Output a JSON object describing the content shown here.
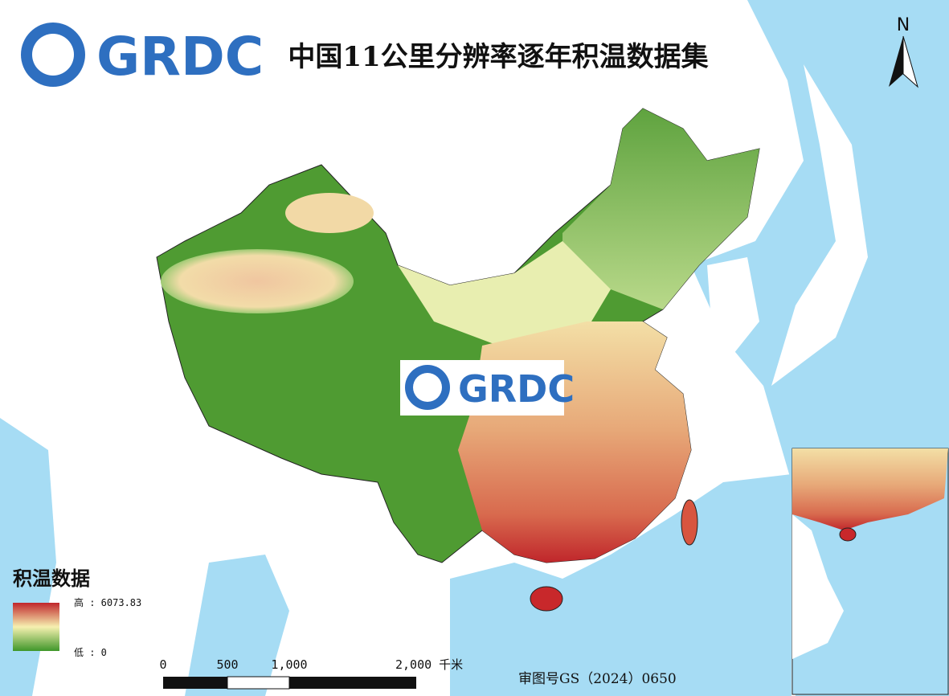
{
  "header": {
    "logo": "GRDC",
    "title": "中国11公里分辨率逐年积温数据集"
  },
  "watermark": "GRDC",
  "north_arrow": "N",
  "legend": {
    "title": "积温数据",
    "high": "高 : 6073.83",
    "low": "低 : 0"
  },
  "scale_bar": {
    "labels": [
      "0",
      "500",
      "1,000",
      "2,000 千米"
    ]
  },
  "approval_number": "审图号GS（2024）0650"
}
